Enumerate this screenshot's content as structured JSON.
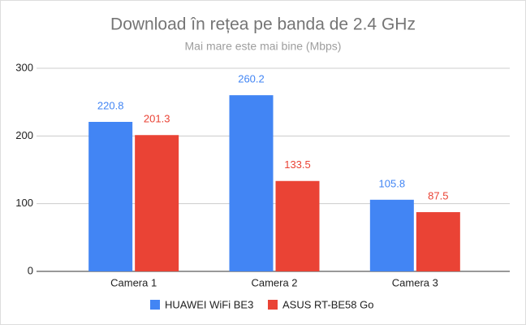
{
  "chart_data": {
    "type": "bar",
    "title": "Download în rețea pe banda de 2.4 GHz",
    "subtitle": "Mai mare este mai bine (Mbps)",
    "categories": [
      "Camera 1",
      "Camera 2",
      "Camera 3"
    ],
    "series": [
      {
        "name": "HUAWEI WiFi BE3",
        "color": "#4285f4",
        "values": [
          220.8,
          260.2,
          105.8
        ]
      },
      {
        "name": "ASUS RT-BE58 Go",
        "color": "#ea4335",
        "values": [
          201.3,
          133.5,
          87.5
        ]
      }
    ],
    "ylim": [
      0,
      300
    ],
    "yticks": [
      0,
      100,
      200,
      300
    ],
    "grid": true,
    "legend": "bottom"
  }
}
